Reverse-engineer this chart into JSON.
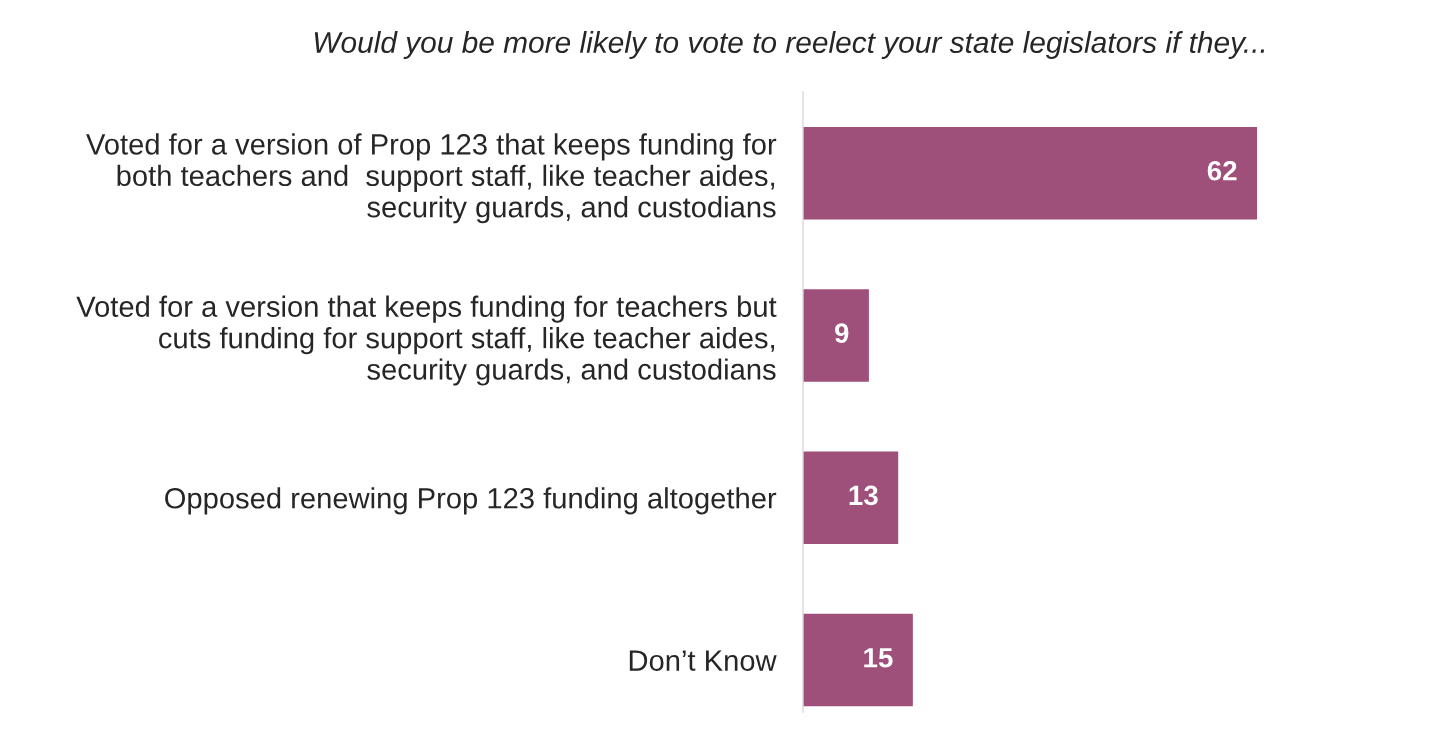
{
  "chart_data": {
    "type": "bar",
    "orientation": "horizontal",
    "title": "Would you be more likely to vote to reelect your state legislators if they...",
    "categories": [
      "Voted for a version of Prop 123 that keeps funding for\nboth teachers and  support staff, like teacher aides,\nsecurity guards, and custodians",
      "Voted for a version that keeps funding for teachers but\ncuts funding for support staff, like teacher aides,\nsecurity guards, and custodians",
      "Opposed renewing Prop 123 funding altogether",
      "Don’t Know"
    ],
    "values": [
      62,
      9,
      13,
      15
    ],
    "color": "#9e4f7a",
    "data_labels": true,
    "tick_labels": "y",
    "grid": false,
    "legend": false
  }
}
